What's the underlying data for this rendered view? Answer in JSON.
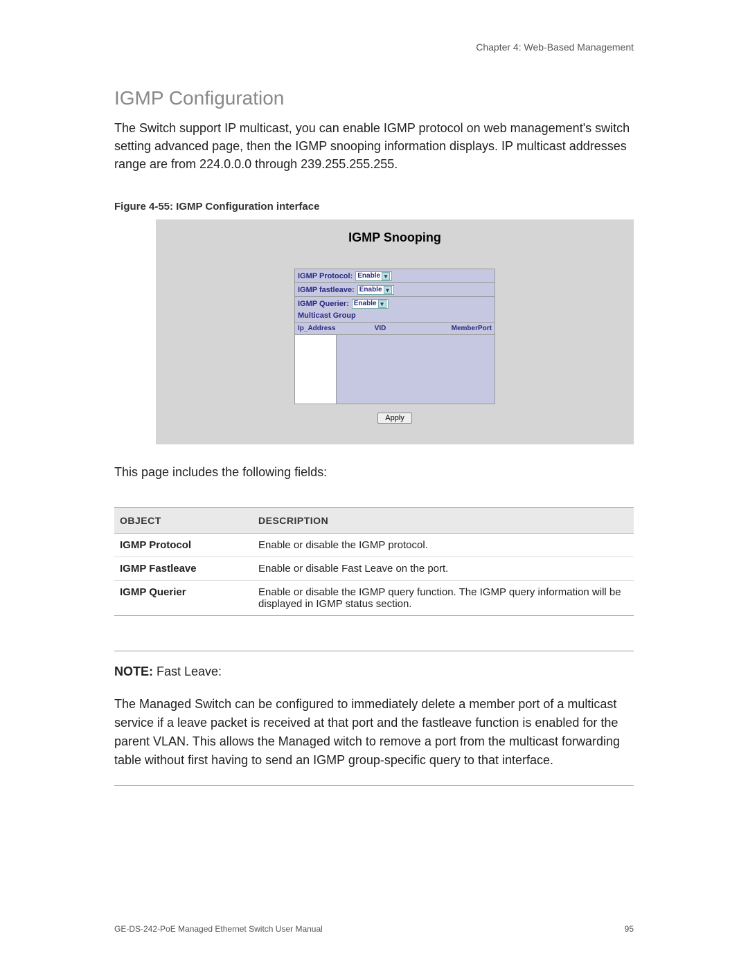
{
  "header": {
    "chapter": "Chapter 4: Web-Based Management"
  },
  "title": "IGMP Configuration",
  "intro": "The Switch support IP multicast, you can enable IGMP protocol on web management's switch setting advanced page, then the IGMP snooping information displays. IP multicast addresses range are from 224.0.0.0 through 239.255.255.255.",
  "figure_caption": "Figure 4-55: IGMP Configuration interface",
  "screenshot": {
    "title": "IGMP Snooping",
    "rows": [
      {
        "label": "IGMP Protocol:",
        "value": "Enable"
      },
      {
        "label": "IGMP fastleave:",
        "value": "Enable"
      },
      {
        "label": "IGMP Querier:",
        "value": "Enable"
      }
    ],
    "group_label": "Multicast Group",
    "col_ip": "Ip_Address",
    "col_vid": "VID",
    "col_mp": "MemberPort",
    "apply": "Apply"
  },
  "after_shot": "This page includes the following fields:",
  "table": {
    "h_object": "OBJECT",
    "h_desc": "DESCRIPTION",
    "rows": [
      {
        "obj": "IGMP Protocol",
        "desc": "Enable or disable the IGMP protocol."
      },
      {
        "obj": "IGMP Fastleave",
        "desc": "Enable or disable Fast Leave on the port."
      },
      {
        "obj": "IGMP Querier",
        "desc": "Enable or disable the IGMP query function. The IGMP query information will be displayed in IGMP status section."
      }
    ]
  },
  "note": {
    "label": "NOTE:",
    "title": " Fast Leave:",
    "body": "The Managed Switch can be configured to immediately delete a member port of a multicast service if a leave packet is received at that port and the fastleave function is enabled for the parent VLAN. This allows the Managed witch to remove a port from the multicast forwarding table without first having to send an IGMP group-specific query to that interface."
  },
  "footer": {
    "manual": "GE-DS-242-PoE Managed Ethernet Switch User Manual",
    "page": "95"
  }
}
